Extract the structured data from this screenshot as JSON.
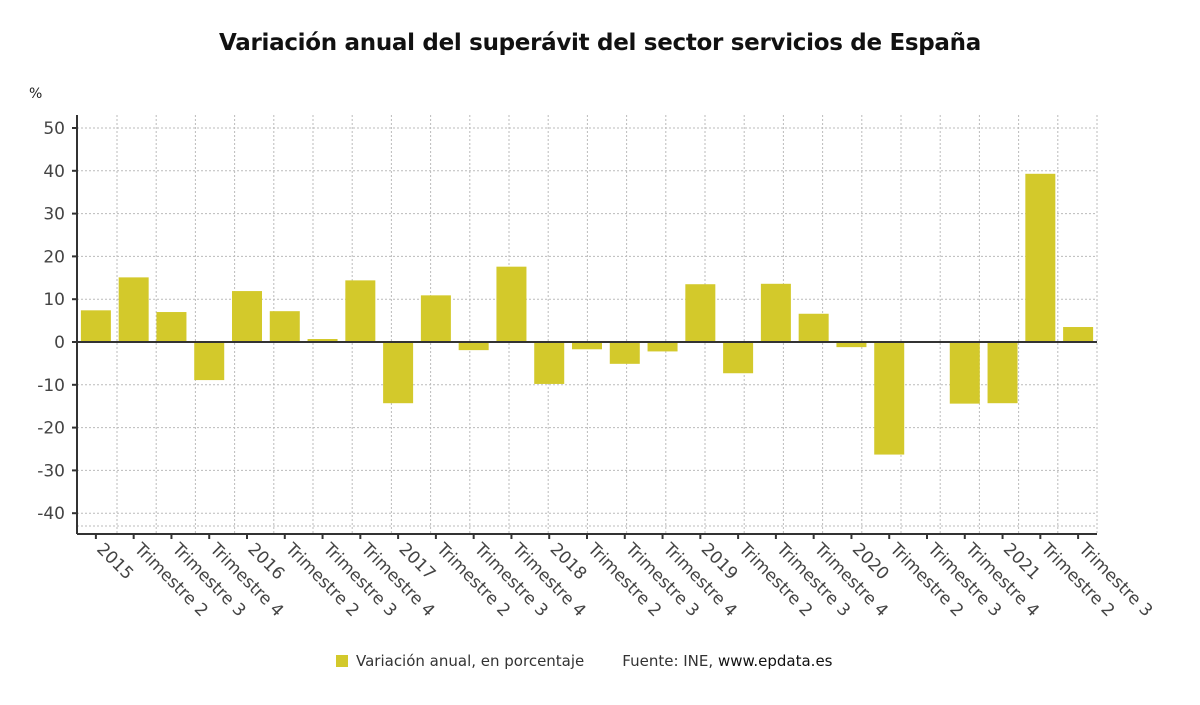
{
  "colors": {
    "bar": "#d3c92b",
    "axis": "#333333",
    "grid": "#bbbbbb",
    "text": "#444444"
  },
  "chart_data": {
    "type": "bar",
    "title": "Variación anual del superávit del sector servicios de España",
    "ylabel": "%",
    "xlabel": "",
    "ylim": [
      -45,
      53
    ],
    "yticks": [
      50,
      40,
      30,
      20,
      10,
      0,
      -10,
      -20,
      -30,
      -40
    ],
    "grid": true,
    "legend_position": "bottom",
    "categories": [
      "2015",
      "Trimestre 2",
      "Trimestre 3",
      "Trimestre 4",
      "2016",
      "Trimestre 2",
      "Trimestre 3",
      "Trimestre 4",
      "2017",
      "Trimestre 2",
      "Trimestre 3",
      "Trimestre 4",
      "2018",
      "Trimestre 2",
      "Trimestre 3",
      "Trimestre 4",
      "2019",
      "Trimestre 2",
      "Trimestre 3",
      "Trimestre 4",
      "2020",
      "Trimestre 2",
      "Trimestre 3",
      "Trimestre 4",
      "2021",
      "Trimestre 2",
      "Trimestre 3"
    ],
    "series": [
      {
        "name": "Variación anual, en porcentaje",
        "values": [
          7.4,
          15.1,
          7.0,
          -8.9,
          11.9,
          7.2,
          0.7,
          14.4,
          -14.3,
          10.9,
          -1.9,
          17.6,
          -9.8,
          -1.7,
          -5.1,
          -2.2,
          13.5,
          -7.3,
          13.6,
          6.6,
          -1.2,
          -26.3,
          0,
          -14.4,
          -14.3,
          39.3,
          3.5
        ]
      }
    ]
  },
  "legend": {
    "label": "Variación anual, en porcentaje"
  },
  "source": {
    "prefix": "Fuente: INE, ",
    "site": "www.epdata.es"
  }
}
